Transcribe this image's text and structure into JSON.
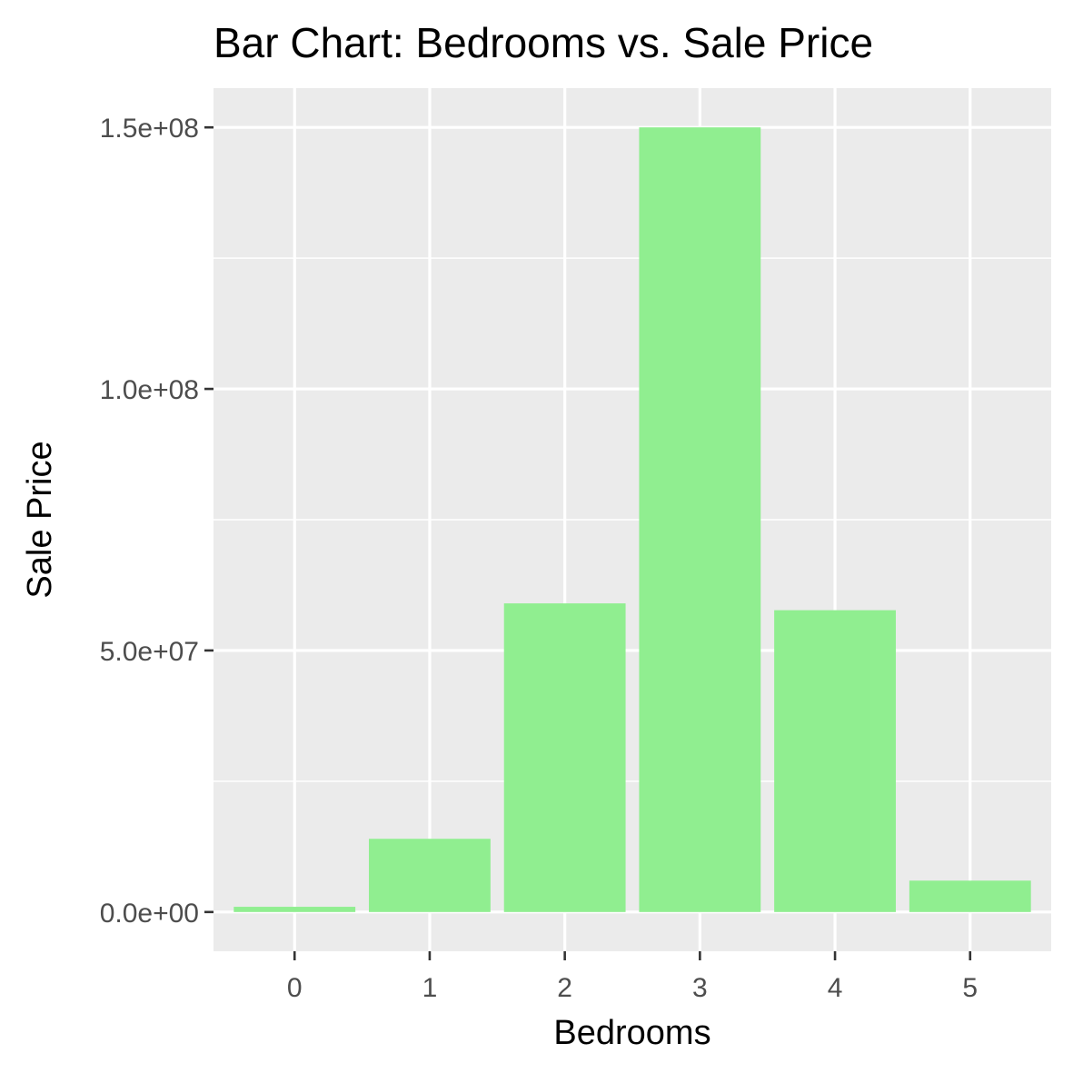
{
  "chart_data": {
    "type": "bar",
    "title": "Bar Chart: Bedrooms vs. Sale Price",
    "xlabel": "Bedrooms",
    "ylabel": "Sale Price",
    "categories": [
      "0",
      "1",
      "2",
      "3",
      "4",
      "5"
    ],
    "values": [
      1000000,
      14000000,
      59000000,
      150000000,
      57700000,
      6000000
    ],
    "y_ticks": [
      0,
      50000000,
      100000000,
      150000000
    ],
    "y_tick_labels": [
      "0.0e+00",
      "5.0e+07",
      "1.0e+08",
      "1.5e+08"
    ],
    "ylim": [
      -7500000,
      157500000
    ],
    "grid": true,
    "bar_color": "#90EE90",
    "panel_color": "#EBEBEB",
    "grid_color": "#FFFFFF"
  }
}
